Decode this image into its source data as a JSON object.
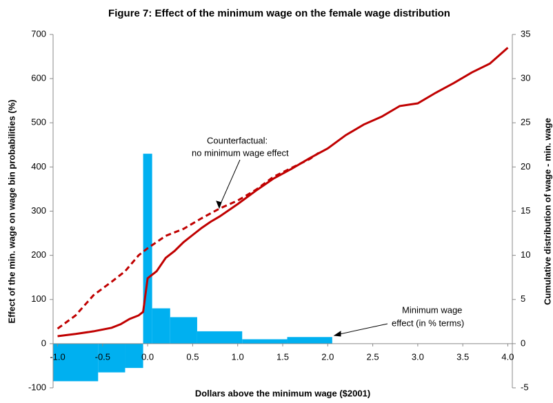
{
  "chart_data": {
    "type": "histogram-lines",
    "title": "Figure 7: Effect of the minimum wage on the female wage distribution",
    "x_label": "Dollars above the minimum wage ($2001)",
    "y_label": "Effect of the min. wage on wage bin probabilities (%)",
    "y2_label": "Cumulative distribution of wage - min. wage",
    "bins": [
      -1.05,
      -0.55,
      -0.25,
      -0.05,
      0.05,
      0.25,
      0.55,
      1.05,
      1.55,
      2.05
    ],
    "values": [
      -85,
      -65,
      -55,
      430,
      80,
      60,
      28,
      10,
      15
    ],
    "color": "#00b0f0",
    "series": [
      {
        "color": "#c00000",
        "axis": "y2",
        "dash": false,
        "x": [
          -1.0,
          -0.8,
          -0.6,
          -0.4,
          -0.3,
          -0.2,
          -0.1,
          -0.05,
          0.0,
          0.1,
          0.2,
          0.3,
          0.4,
          0.5,
          0.6,
          0.7,
          0.8,
          0.9,
          1.0,
          1.2,
          1.4,
          1.6,
          1.8,
          2.0,
          2.2,
          2.4,
          2.6,
          2.8,
          3.0,
          3.2,
          3.4,
          3.6,
          3.8,
          4.0
        ],
        "values": [
          0.85,
          1.1,
          1.4,
          1.8,
          2.2,
          2.8,
          3.2,
          3.6,
          7.4,
          8.2,
          9.7,
          10.5,
          11.5,
          12.3,
          13.1,
          13.8,
          14.4,
          15.1,
          15.8,
          17.3,
          18.7,
          19.8,
          21.0,
          22.1,
          23.6,
          24.8,
          25.7,
          26.9,
          27.2,
          28.4,
          29.5,
          30.7,
          31.7,
          33.5
        ]
      },
      {
        "color": "#c00000",
        "axis": "y2",
        "dash": true,
        "x": [
          -1.0,
          -0.8,
          -0.6,
          -0.4,
          -0.25,
          -0.1,
          0.0,
          0.1,
          0.2,
          0.4,
          0.6,
          0.8,
          1.0,
          1.2,
          1.4,
          1.6,
          1.8,
          1.9
        ],
        "values": [
          1.7,
          3.2,
          5.5,
          7.0,
          8.2,
          10.0,
          10.8,
          11.5,
          12.2,
          13.0,
          14.2,
          15.3,
          16.2,
          17.4,
          18.9,
          19.9,
          20.9,
          21.6
        ]
      }
    ],
    "annotations": [
      "Counterfactual:",
      "no minimum wage effect",
      "Minimum wage",
      "effect (in % terms)"
    ],
    "xlim": [
      -1.05,
      4.05
    ],
    "xticks": [
      {
        "value": -1.0,
        "label": "-1.0"
      },
      {
        "value": -0.5,
        "label": "-0.5"
      },
      {
        "value": 0.0,
        "label": "0.0"
      },
      {
        "value": 0.5,
        "label": "0.5"
      },
      {
        "value": 1.0,
        "label": "1.0"
      },
      {
        "value": 1.5,
        "label": "1.5"
      },
      {
        "value": 2.0,
        "label": "2.0"
      },
      {
        "value": 2.5,
        "label": "2.5"
      },
      {
        "value": 3.0,
        "label": "3.0"
      },
      {
        "value": 3.5,
        "label": "3.5"
      },
      {
        "value": 4.0,
        "label": "4.0"
      }
    ],
    "ylim": [
      -100,
      700
    ],
    "yticks": [
      -100,
      0,
      100,
      200,
      300,
      400,
      500,
      600,
      700
    ],
    "y2lim": [
      -5,
      35
    ],
    "y2ticks": [
      -5,
      0,
      5,
      10,
      15,
      20,
      25,
      30,
      35
    ]
  }
}
